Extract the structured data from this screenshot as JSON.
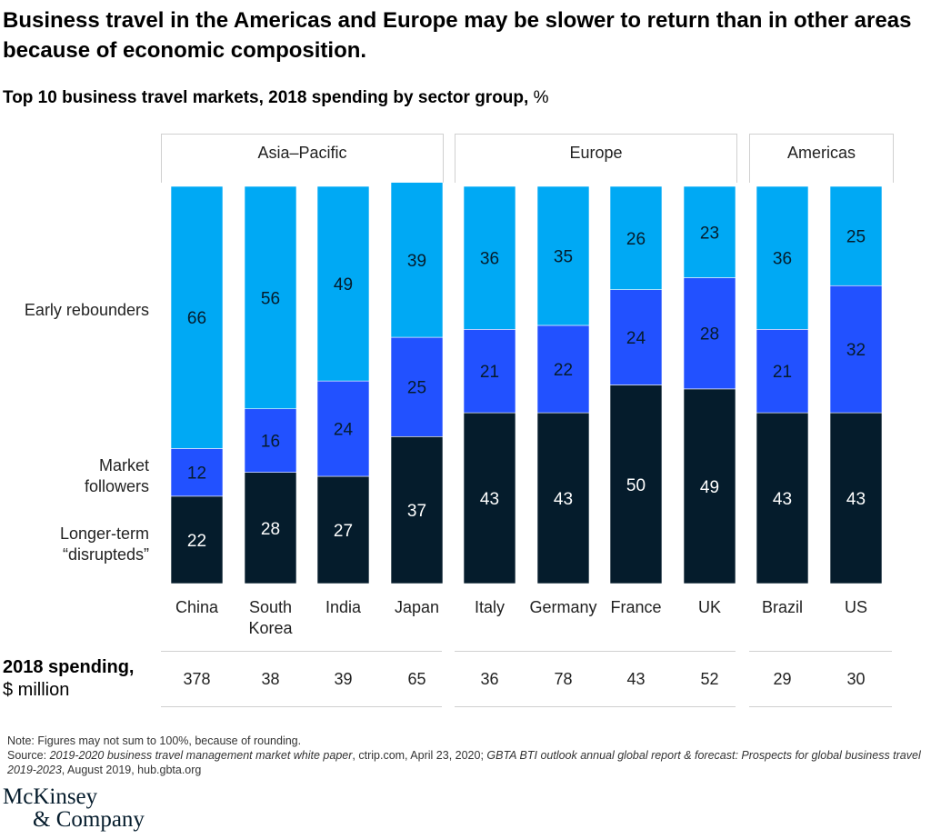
{
  "title": "Business travel in the Americas and Europe may be slower to return than in other areas because of economic composition.",
  "subtitle": {
    "bold": "Top 10 business travel markets, 2018 spending by sector group,",
    "unit": "%"
  },
  "groups": [
    "Asia–Pacific",
    "Europe",
    "Americas"
  ],
  "segment_labels": {
    "early": "Early rebounders",
    "followers": "Market followers",
    "disrupted": "Longer-term “disrupteds”"
  },
  "colors": {
    "early": "#00a9f4",
    "followers": "#2251ff",
    "disrupted": "#051c2c"
  },
  "chart_data": {
    "type": "bar",
    "stacked": true,
    "title": "Top 10 business travel markets, 2018 spending by sector group, %",
    "categories": [
      "China",
      "South Korea",
      "India",
      "Japan",
      "Italy",
      "Germany",
      "France",
      "UK",
      "Brazil",
      "US"
    ],
    "groups": [
      {
        "name": "Asia–Pacific",
        "categories": [
          "China",
          "South Korea",
          "India",
          "Japan"
        ]
      },
      {
        "name": "Europe",
        "categories": [
          "Italy",
          "Germany",
          "France",
          "UK"
        ]
      },
      {
        "name": "Americas",
        "categories": [
          "Brazil",
          "US"
        ]
      }
    ],
    "series": [
      {
        "name": "Longer-term “disrupteds”",
        "values": [
          22,
          28,
          27,
          37,
          43,
          43,
          50,
          49,
          43,
          43
        ]
      },
      {
        "name": "Market followers",
        "values": [
          12,
          16,
          24,
          25,
          21,
          22,
          24,
          28,
          21,
          32
        ]
      },
      {
        "name": "Early rebounders",
        "values": [
          66,
          56,
          49,
          39,
          36,
          35,
          26,
          23,
          36,
          25
        ]
      }
    ],
    "spending_label": "2018 spending,",
    "spending_unit": "$ million",
    "spending": [
      378,
      38,
      39,
      65,
      36,
      78,
      43,
      52,
      29,
      30
    ]
  },
  "notes": {
    "note": "Note: Figures may not sum to 100%, because of rounding.",
    "source_prefix": "Source: ",
    "source1": "2019-2020 business travel management market white paper",
    "source2": ", ctrip.com, April 23, 2020; ",
    "source3": "GBTA BTI outlook annual global report & forecast: Prospects for global business travel 2019-2023",
    "source4": ", August 2019, hub.gbta.org"
  },
  "logo": {
    "line1": "McKinsey",
    "line2": "& Company"
  }
}
